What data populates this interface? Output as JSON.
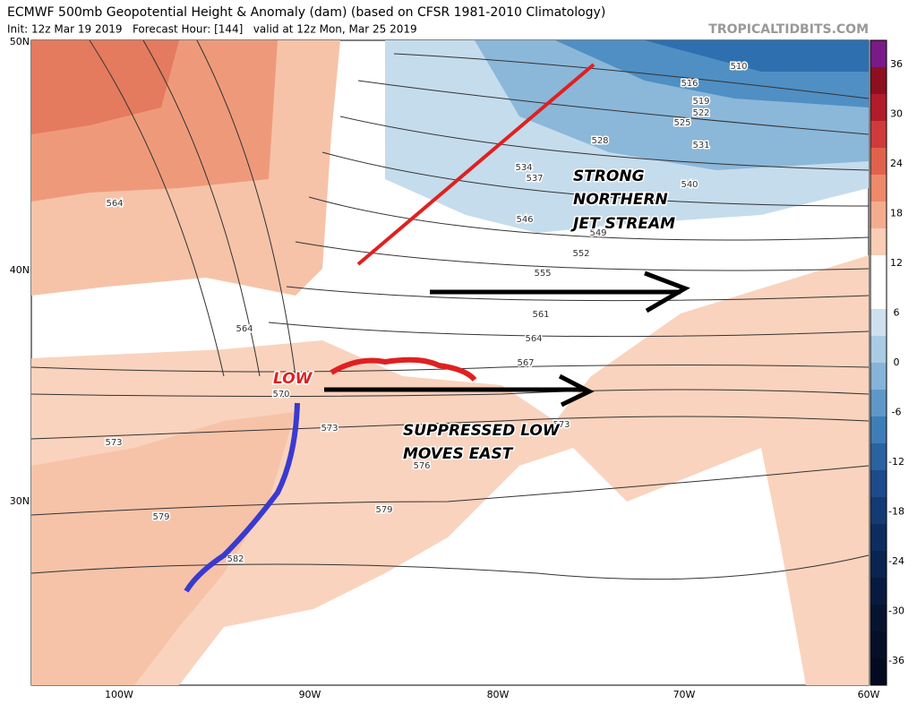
{
  "header": {
    "title": "ECMWF 500mb Geopotential Height & Anomaly (dam) (based on CFSR 1981-2010 Climatology)",
    "subtitle": "Init: 12z Mar 19 2019   Forecast Hour: [144]   valid at 12z Mon, Mar 25 2019",
    "site": "TROPICALTIDBITS.COM"
  },
  "map": {
    "lat_labels": [
      "50N",
      "40N",
      "30N"
    ],
    "lon_labels": [
      "100W",
      "90W",
      "80W",
      "70W",
      "60W"
    ],
    "contour_labels": [
      510,
      516,
      519,
      522,
      525,
      531,
      528,
      534,
      537,
      540,
      546,
      549,
      552,
      555,
      561,
      564,
      567,
      564,
      564,
      570,
      573,
      573,
      576,
      573,
      579,
      579,
      582
    ]
  },
  "colorbar": {
    "ticks": [
      36,
      30,
      24,
      18,
      12,
      6,
      0,
      -6,
      -12,
      -18,
      -24,
      -30,
      -36
    ]
  },
  "annotations": {
    "jet": [
      "STRONG",
      "NORTHERN",
      "JET STREAM"
    ],
    "low": "LOW",
    "suppressed": [
      "SUPPRESSED LOW",
      "MOVES EAST"
    ]
  }
}
